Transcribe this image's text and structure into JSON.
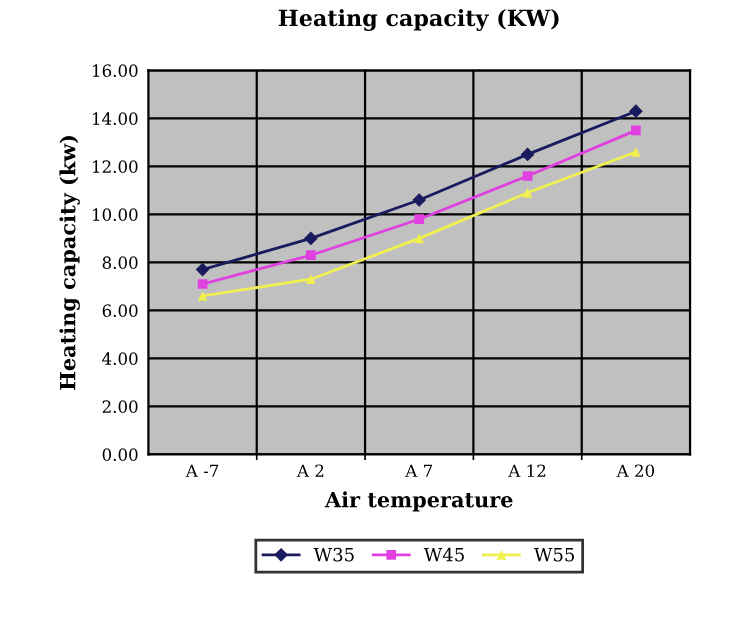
{
  "chart_data": {
    "type": "line",
    "title": "Heating capacity (KW)",
    "xlabel": "Air temperature",
    "ylabel": "Heating capacity (kw)",
    "categories": [
      "A -7",
      "A 2",
      "A 7",
      "A 12",
      "A 20"
    ],
    "series": [
      {
        "name": "W35",
        "color": "#1a1a5e",
        "marker": "diamond",
        "values": [
          7.7,
          9.0,
          10.6,
          12.5,
          14.3
        ]
      },
      {
        "name": "W45",
        "color": "#e040e0",
        "marker": "square",
        "values": [
          7.1,
          8.3,
          9.8,
          11.6,
          13.5
        ]
      },
      {
        "name": "W55",
        "color": "#f0f050",
        "marker": "triangle",
        "values": [
          6.6,
          7.3,
          9.0,
          10.9,
          12.6
        ]
      }
    ],
    "ylim": [
      0,
      16
    ],
    "yticks": [
      {
        "value": 0,
        "label": "0.00"
      },
      {
        "value": 2,
        "label": "2.00"
      },
      {
        "value": 4,
        "label": "4.00"
      },
      {
        "value": 6,
        "label": "6.00"
      },
      {
        "value": 8,
        "label": "8.00"
      },
      {
        "value": 10,
        "label": "10.00"
      },
      {
        "value": 12,
        "label": "12.00"
      },
      {
        "value": 14,
        "label": "14.00"
      },
      {
        "value": 16,
        "label": "16.00"
      }
    ],
    "grid": true,
    "legend": "bottom",
    "line_style": "solid"
  }
}
